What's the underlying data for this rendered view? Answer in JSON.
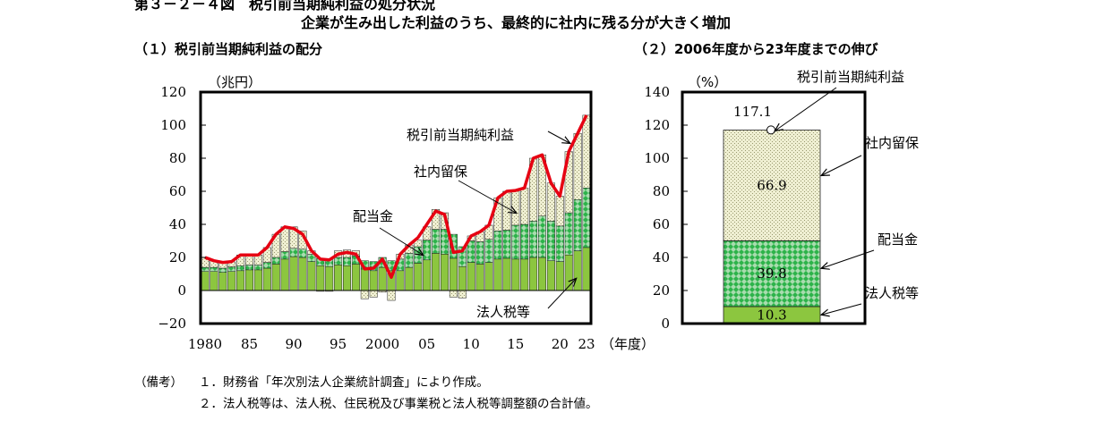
{
  "figure": {
    "title": "第３－２－４図　税引前当期純利益の処分状況",
    "subtitle": "企業が生み出した利益のうち、最終的に社内に残る分が大きく増加"
  },
  "colors": {
    "tax": "#8cc63f",
    "dividend": "#2db34a",
    "retained": "#efefd2",
    "profit_line": "#e60012",
    "frame": "#000000"
  },
  "notes": {
    "label": "（備考）",
    "items": [
      "１．財務省「年次別法人企業統計調査」により作成。",
      "２．法人税等は、法人税、住民税及び事業税と法人税等調整額の合計値。"
    ]
  },
  "chart_data": [
    {
      "panel_title": "（１）税引前当期純利益の配分",
      "type": "bar",
      "stacked": true,
      "unit_label": "（兆円）",
      "x_unit_label": "（年度）",
      "ylim": [
        -20,
        120
      ],
      "y_ticks": [
        -20,
        0,
        20,
        40,
        60,
        80,
        100,
        120
      ],
      "x_tick_labels": [
        {
          "year": 1980,
          "label": "1980"
        },
        {
          "year": 1985,
          "label": "85"
        },
        {
          "year": 1990,
          "label": "90"
        },
        {
          "year": 1995,
          "label": "95"
        },
        {
          "year": 2000,
          "label": "2000"
        },
        {
          "year": 2005,
          "label": "05"
        },
        {
          "year": 2010,
          "label": "10"
        },
        {
          "year": 2015,
          "label": "15"
        },
        {
          "year": 2020,
          "label": "20"
        },
        {
          "year": 2023,
          "label": "23"
        }
      ],
      "categories": [
        1980,
        1981,
        1982,
        1983,
        1984,
        1985,
        1986,
        1987,
        1988,
        1989,
        1990,
        1991,
        1992,
        1993,
        1994,
        1995,
        1996,
        1997,
        1998,
        1999,
        2000,
        2001,
        2002,
        2003,
        2004,
        2005,
        2006,
        2007,
        2008,
        2009,
        2010,
        2011,
        2012,
        2013,
        2014,
        2015,
        2016,
        2017,
        2018,
        2019,
        2020,
        2021,
        2022,
        2023
      ],
      "series": [
        {
          "name": "法人税等",
          "kind": "bar",
          "values": [
            11.5,
            11.5,
            11,
            11.5,
            12,
            12.5,
            12.5,
            13.5,
            16,
            19,
            20.5,
            20,
            17.5,
            15,
            14.5,
            15.5,
            15,
            16,
            13,
            12,
            14,
            12,
            12,
            14,
            16.5,
            18.5,
            22.5,
            22,
            19.5,
            14.5,
            17,
            16,
            17,
            19,
            19.5,
            19,
            19,
            20,
            20,
            18,
            17.5,
            21.5,
            24,
            26
          ]
        },
        {
          "name": "配当金",
          "kind": "bar",
          "values": [
            2.5,
            2.5,
            2.5,
            2.8,
            3,
            3,
            3,
            3.5,
            4,
            4.5,
            5,
            5,
            4.5,
            4.5,
            4.5,
            4.5,
            5,
            5,
            5,
            5.5,
            6,
            6,
            7,
            8.5,
            10,
            12,
            14.5,
            15,
            14.5,
            12,
            13,
            13.5,
            14,
            17,
            17,
            20.5,
            21,
            22,
            25,
            24,
            21.5,
            25.5,
            31,
            36
          ]
        },
        {
          "name": "社内留保",
          "kind": "bar",
          "values": [
            6,
            4,
            3.5,
            3,
            6.5,
            6,
            6,
            9,
            14,
            15,
            13,
            11,
            2,
            -0.5,
            -0.5,
            4,
            4.5,
            3,
            -5,
            -4,
            -1,
            -6,
            3,
            5,
            4,
            8,
            12,
            10,
            -4,
            -4.5,
            3,
            6,
            8.5,
            20,
            23.5,
            21,
            22,
            38,
            37,
            23,
            18,
            37,
            40,
            44
          ]
        },
        {
          "name": "税引前当期純利益",
          "kind": "line",
          "values": [
            20,
            18,
            17,
            17.5,
            21.5,
            21.5,
            21.5,
            26,
            34,
            38.5,
            37.5,
            34,
            24,
            19,
            18.5,
            22,
            23,
            22,
            13,
            13.5,
            19,
            8,
            22,
            27.5,
            32,
            40,
            48,
            46,
            23,
            24,
            33,
            35.5,
            39.5,
            56,
            60,
            60.5,
            62,
            80,
            82,
            65,
            57,
            84,
            95,
            106
          ]
        }
      ],
      "annotations": {
        "tax": "法人税等",
        "dividend": "配当金",
        "retained": "社内留保",
        "profit": "税引前当期純利益"
      }
    },
    {
      "panel_title": "（２）2006年度から23年度までの伸び",
      "type": "bar",
      "stacked": true,
      "unit_label": "（%）",
      "ylim": [
        0,
        140
      ],
      "y_ticks": [
        0,
        20,
        40,
        60,
        80,
        100,
        120,
        140
      ],
      "series": [
        {
          "name": "法人税等",
          "value": 10.3,
          "label": "10.3"
        },
        {
          "name": "配当金",
          "value": 39.8,
          "label": "39.8"
        },
        {
          "name": "社内留保",
          "value": 66.9,
          "label": "66.9"
        }
      ],
      "total": {
        "name": "税引前当期純利益",
        "value": 117.1,
        "label": "117.1"
      }
    }
  ]
}
